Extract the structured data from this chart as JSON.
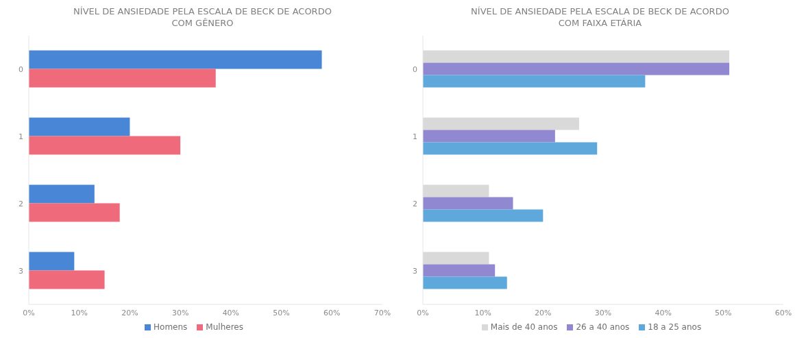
{
  "chart_data": [
    {
      "type": "bar",
      "orientation": "horizontal",
      "title": "NÍVEL DE ANSIEDADE PELA ESCALA DE BECK DE ACORDO COM GÊNERO",
      "categories": [
        "0",
        "1",
        "2",
        "3"
      ],
      "series": [
        {
          "name": "Homens",
          "color": "#4a86d6",
          "values": [
            58,
            20,
            13,
            9
          ]
        },
        {
          "name": "Mulheres",
          "color": "#ef6b7b",
          "values": [
            37,
            30,
            18,
            15
          ]
        }
      ],
      "xlim": [
        0,
        70
      ],
      "xticks": [
        {
          "value": 0,
          "label": "0%"
        },
        {
          "value": 10,
          "label": "10%"
        },
        {
          "value": 20,
          "label": "20%"
        },
        {
          "value": 30,
          "label": "30%"
        },
        {
          "value": 40,
          "label": "40%"
        },
        {
          "value": 50,
          "label": "50%"
        },
        {
          "value": 60,
          "label": "60%"
        },
        {
          "value": 70,
          "label": "70%"
        }
      ],
      "grid": false,
      "legend": "bottom"
    },
    {
      "type": "bar",
      "orientation": "horizontal",
      "title": "NÍVEL DE ANSIEDADE PELA ESCALA DE BECK DE ACORDO COM FAIXA ETÁRIA",
      "categories": [
        "0",
        "1",
        "2",
        "3"
      ],
      "series": [
        {
          "name": "Mais de 40 anos",
          "color": "#d9d9d9",
          "values": [
            51,
            26,
            11,
            11
          ]
        },
        {
          "name": "26 a 40 anos",
          "color": "#9088d0",
          "values": [
            51,
            22,
            15,
            12
          ]
        },
        {
          "name": "18 a 25 anos",
          "color": "#5fa8dc",
          "values": [
            37,
            29,
            20,
            14
          ]
        }
      ],
      "xlim": [
        0,
        60
      ],
      "xticks": [
        {
          "value": 0,
          "label": "0%"
        },
        {
          "value": 10,
          "label": "10%"
        },
        {
          "value": 20,
          "label": "20%"
        },
        {
          "value": 30,
          "label": "30%"
        },
        {
          "value": 40,
          "label": "40%"
        },
        {
          "value": 50,
          "label": "50%"
        },
        {
          "value": 60,
          "label": "60%"
        }
      ],
      "grid": false,
      "legend": "bottom"
    }
  ]
}
